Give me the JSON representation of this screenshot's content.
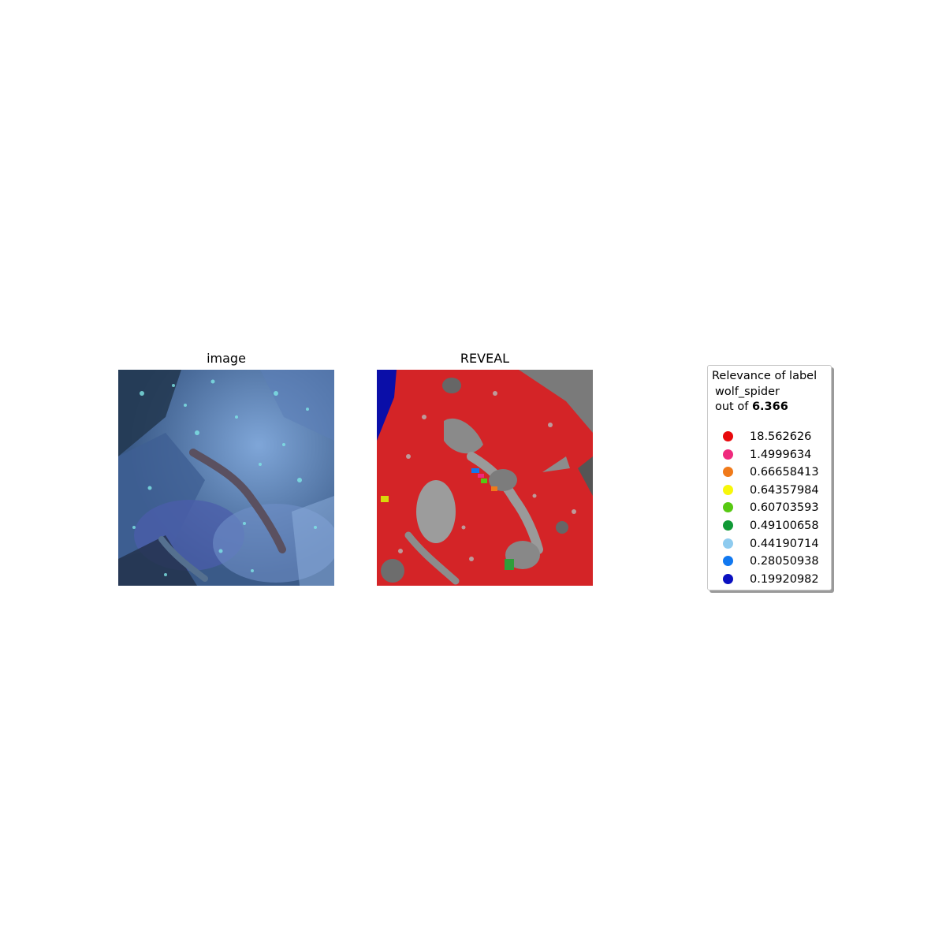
{
  "titles": {
    "left": "image",
    "right": "REVEAL"
  },
  "legend": {
    "title_line1": "Relevance of label",
    "title_line2": "wolf_spider",
    "title_prefix": "out of",
    "score": "6.366",
    "entries": [
      {
        "value": "18.562626",
        "color": "#e8090c"
      },
      {
        "value": "1.4999634",
        "color": "#ef2a7d"
      },
      {
        "value": "0.66658413",
        "color": "#f07a1a"
      },
      {
        "value": "0.64357984",
        "color": "#f7f70a"
      },
      {
        "value": "0.60703593",
        "color": "#57c912"
      },
      {
        "value": "0.49100658",
        "color": "#109936"
      },
      {
        "value": "0.44190714",
        "color": "#8ecbef"
      },
      {
        "value": "0.28050938",
        "color": "#1178f0"
      },
      {
        "value": "0.19920982",
        "color": "#0a10c0"
      }
    ]
  }
}
